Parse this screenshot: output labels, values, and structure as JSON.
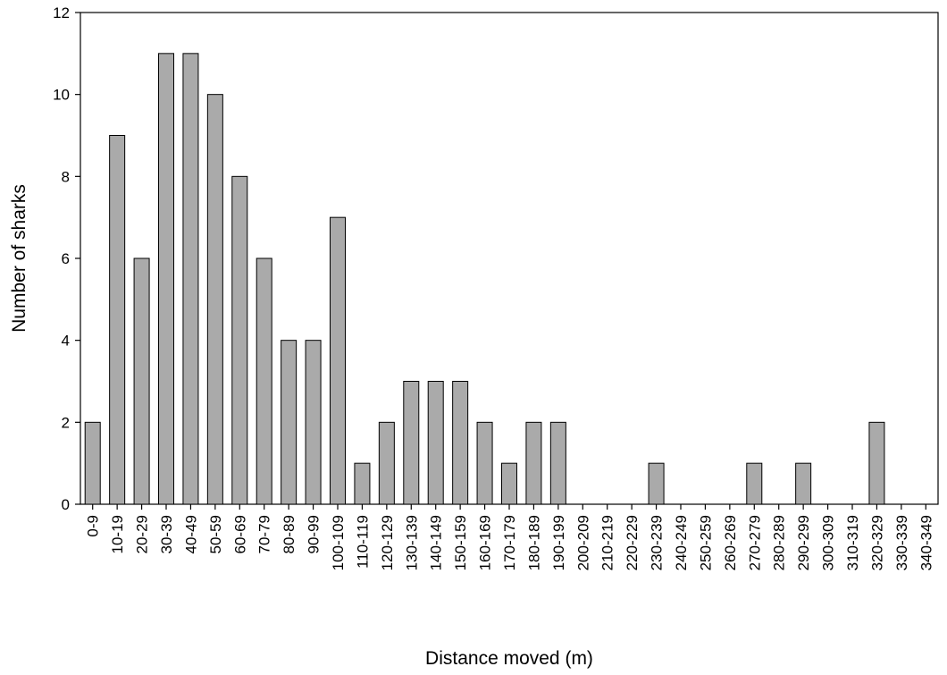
{
  "chart_data": {
    "type": "bar",
    "title": "",
    "xlabel": "Distance moved (m)",
    "ylabel": "Number of sharks",
    "ylim": [
      0,
      12
    ],
    "yticks": [
      0,
      2,
      4,
      6,
      8,
      10,
      12
    ],
    "grid": false,
    "legend": "none",
    "bar_color": "#aaaaaa",
    "categories": [
      "0-9",
      "10-19",
      "20-29",
      "30-39",
      "40-49",
      "50-59",
      "60-69",
      "70-79",
      "80-89",
      "90-99",
      "100-109",
      "110-119",
      "120-129",
      "130-139",
      "140-149",
      "150-159",
      "160-169",
      "170-179",
      "180-189",
      "190-199",
      "200-209",
      "210-219",
      "220-229",
      "230-239",
      "240-249",
      "250-259",
      "260-269",
      "270-279",
      "280-289",
      "290-299",
      "300-309",
      "310-319",
      "320-329",
      "330-339",
      "340-349"
    ],
    "values": [
      2,
      9,
      6,
      11,
      11,
      10,
      8,
      6,
      4,
      4,
      7,
      1,
      2,
      3,
      3,
      3,
      2,
      1,
      2,
      2,
      0,
      0,
      0,
      1,
      0,
      0,
      0,
      1,
      0,
      1,
      0,
      0,
      2,
      0,
      0
    ]
  }
}
